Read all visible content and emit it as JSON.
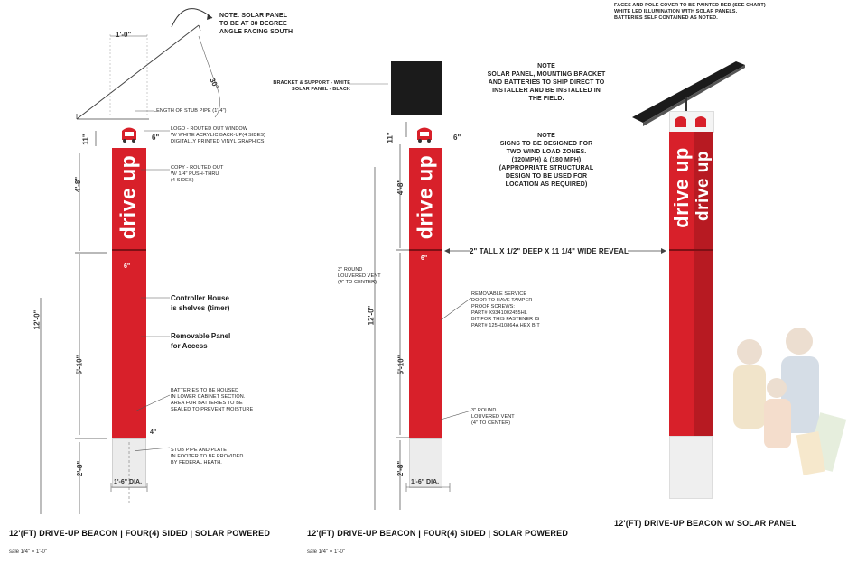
{
  "pole": {
    "brand_text": "drive up",
    "colors": {
      "pole": "#d8202a",
      "footing": "#ececec",
      "solar_panel": "#1b1b1b"
    }
  },
  "left": {
    "note_solar": [
      "NOTE: SOLAR PANEL",
      "TO BE AT 30 DEGREE",
      "ANGLE FACING SOUTH"
    ],
    "dim_width": "1'-0\"",
    "dim_angle": "30°",
    "stub_pipe": "LENGTH OF STUB PIPE (1'-4\")",
    "dim_11": "11\"",
    "dim_6": "6\"",
    "logo_note": [
      "LOGO - ROUTED OUT WINDOW",
      "W/ WHITE ACRYLIC BACK-UP(4 SIDES)",
      "DIGITALLY PRINTED VINYL GRAPHICS"
    ],
    "copy_note": [
      "COPY - ROUTED OUT",
      "W/ 1/4\" PUSH-THRU",
      "(4 SIDES)"
    ],
    "dim_4_8": "4'-8\"",
    "dim_12_0": "12'-0\"",
    "dim_5_10": "5'-10\"",
    "dim_2_8": "2'-8\"",
    "dim_inner_6": "6\"",
    "controller_note": [
      "Controller House",
      "is shelves (timer)"
    ],
    "panel_note": [
      "Removable Panel",
      "for Access"
    ],
    "battery_note": [
      "BATTERIES TO BE HOUSED",
      "IN LOWER CABINET SECTION.",
      "AREA FOR BATTERIES TO BE",
      "SEALED TO PREVENT MOISTURE"
    ],
    "dim_4": "4\"",
    "stub_note": [
      "STUB PIPE AND PLATE",
      "IN FOOTER TO BE PROVIDED",
      "BY FEDERAL HEATH."
    ],
    "dia": "1'-6\" DIA.",
    "title": "12'(FT) DRIVE-UP BEACON | FOUR(4) SIDED | SOLAR POWERED",
    "scale": "sale 1/4\" = 1'-0\""
  },
  "middle": {
    "bracket_note": [
      "BRACKET & SUPPORT - WHITE",
      "SOLAR PANEL - BLACK"
    ],
    "dim_11": "11\"",
    "dim_6": "6\"",
    "dim_4_8": "4'-8\"",
    "dim_12_0": "12'-0\"",
    "dim_5_10": "5'-10\"",
    "dim_2_8": "2'-8\"",
    "dim_inner_6": "6\"",
    "vent_top": [
      "3\" ROUND",
      "LOUVERED VENT",
      "(4\" TO CENTER)"
    ],
    "service_note": [
      "REMOVABLE SERVICE",
      "DOOR TO HAVE TAMPER",
      "PROOF SCREWS:",
      "PART# X9341002455HL",
      "BIT FOR THIS FASTENER IS",
      "PART# 125H10864A HEX BIT"
    ],
    "vent_bottom": [
      "3\" ROUND",
      "LOUVERED VENT",
      "(4\" TO CENTER)"
    ],
    "dia": "1'-6\" DIA.",
    "title": "12'(FT) DRIVE-UP BEACON | FOUR(4) SIDED | SOLAR POWERED",
    "scale": "sale 1/4\" = 1'-0\""
  },
  "center_notes": {
    "note1_head": "NOTE",
    "note1": [
      "SOLAR PANEL, MOUNTING BRACKET",
      "AND BATTERIES TO SHIP DIRECT TO",
      "INSTALLER AND BE INSTALLED IN",
      "THE FIELD."
    ],
    "note2_head": "NOTE",
    "note2": [
      "SIGNS TO BE DESIGNED FOR",
      "TWO WIND LOAD ZONES.",
      "(120MPH) & (180 MPH)",
      "(APPROPRIATE STRUCTURAL",
      "DESIGN TO BE USED FOR",
      "LOCATION AS REQUIRED)"
    ],
    "reveal": "2\" TALL x 1/2\" DEEP x 11 1/4\" WIDE REVEAL"
  },
  "right": {
    "top_note": [
      "FACES AND POLE COVER TO BE PAINTED RED (SEE CHART)",
      "WHITE LED ILLUMINATION WITH SOLAR PANELS.",
      "BATTERIES SELF CONTAINED AS NOTED."
    ],
    "title": "12'(FT) DRIVE-UP BEACON w/ SOLAR PANEL"
  }
}
